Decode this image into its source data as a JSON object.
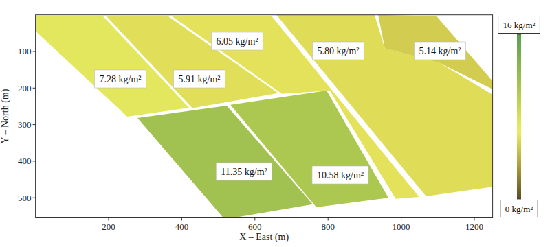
{
  "chart_data": {
    "type": "field_map",
    "x_label": "X – East (m)",
    "y_label": "Y – North (m)",
    "xlim": [
      0,
      1250
    ],
    "ylim": [
      555,
      0
    ],
    "xticks": [
      200,
      400,
      600,
      800,
      1000,
      1200
    ],
    "yticks": [
      100,
      200,
      300,
      400,
      500
    ],
    "fields": {
      "values": [
        7.28,
        5.91,
        6.05,
        5.8,
        5.14,
        11.35,
        10.58
      ],
      "value_labels": [
        "7.28 kg/m²",
        "5.91 kg/m²",
        "6.05 kg/m²",
        "5.80 kg/m²",
        "5.14 kg/m²",
        "11.35 kg/m²",
        "10.58 kg/m²"
      ],
      "polygons": [
        [
          [
            0,
            4
          ],
          [
            185,
            4
          ],
          [
            420,
            254
          ],
          [
            251,
            278
          ],
          [
            0,
            44
          ]
        ],
        [
          [
            194,
            4
          ],
          [
            363,
            4
          ],
          [
            664,
            214
          ],
          [
            429,
            255
          ]
        ],
        [
          [
            373,
            4
          ],
          [
            646,
            4
          ],
          [
            1049,
            498
          ],
          [
            985,
            503
          ],
          [
            805,
            207
          ],
          [
            674,
            216
          ]
        ],
        [
          [
            659,
            0
          ],
          [
            927,
            0
          ],
          [
            955,
            91
          ],
          [
            1106,
            132
          ],
          [
            1250,
            218
          ],
          [
            1250,
            470
          ],
          [
            1068,
            496
          ]
        ],
        [
          [
            937,
            0
          ],
          [
            1097,
            4
          ],
          [
            1250,
            181
          ],
          [
            1250,
            203
          ],
          [
            1106,
            132
          ],
          [
            955,
            91
          ]
        ],
        [
          [
            279,
            282
          ],
          [
            523,
            248
          ],
          [
            758,
            518
          ],
          [
            540,
            555
          ],
          [
            514,
            555
          ]
        ],
        [
          [
            533,
            246
          ],
          [
            796,
            207
          ],
          [
            965,
            500
          ],
          [
            768,
            526
          ]
        ]
      ]
    },
    "colorbar": {
      "range": [
        0,
        16
      ],
      "ticks": [
        {
          "value": 0,
          "label": "0 kg/m²"
        },
        {
          "value": 16,
          "label": "16 kg/m²"
        }
      ]
    }
  }
}
